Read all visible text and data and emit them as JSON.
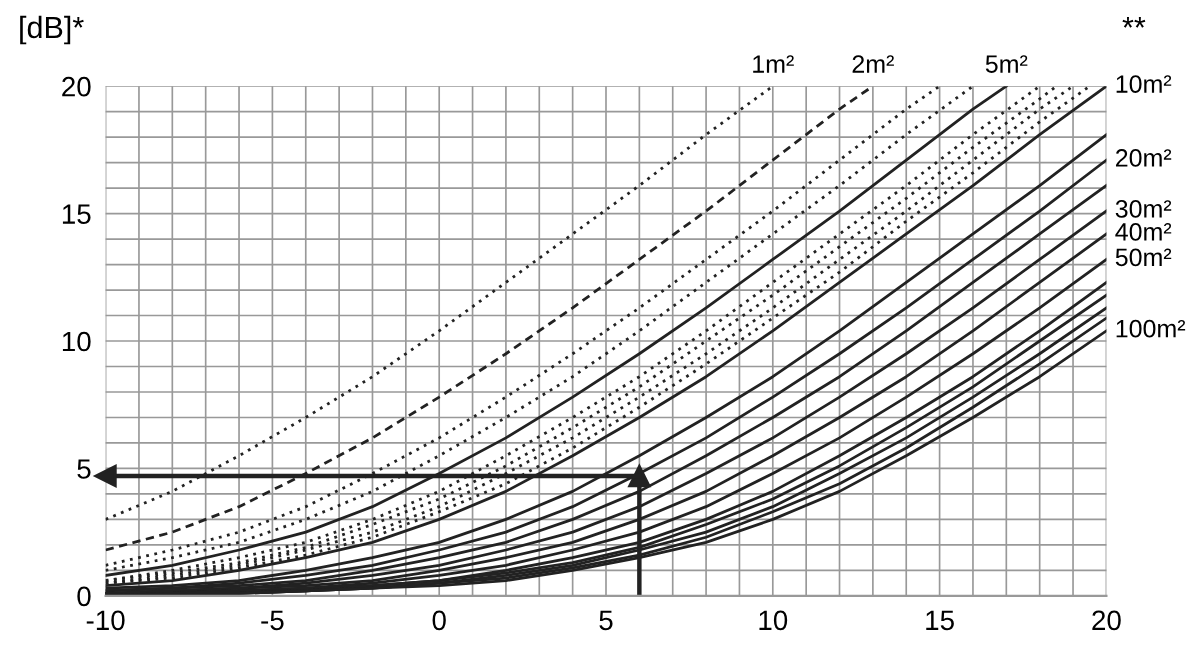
{
  "chart_data": {
    "type": "line",
    "ylabel": "[dB]*",
    "annotations": [
      "**"
    ],
    "grid": true,
    "xlim": [
      -10,
      20
    ],
    "ylim": [
      0,
      20
    ],
    "xticks": [
      -10,
      {
        "value": -9,
        "label": null
      },
      {
        "value": -8,
        "label": null
      },
      {
        "value": -7,
        "label": null
      },
      {
        "value": -6,
        "label": null
      },
      -5,
      {
        "value": -4,
        "label": null
      },
      {
        "value": -3,
        "label": null
      },
      {
        "value": -2,
        "label": null
      },
      {
        "value": -1,
        "label": null
      },
      0,
      {
        "value": 1,
        "label": null
      },
      {
        "value": 2,
        "label": null
      },
      {
        "value": 3,
        "label": null
      },
      {
        "value": 4,
        "label": null
      },
      5,
      {
        "value": 6,
        "label": null
      },
      {
        "value": 7,
        "label": null
      },
      {
        "value": 8,
        "label": null
      },
      {
        "value": 9,
        "label": null
      },
      10,
      {
        "value": 11,
        "label": null
      },
      {
        "value": 12,
        "label": null
      },
      {
        "value": 13,
        "label": null
      },
      {
        "value": 14,
        "label": null
      },
      15,
      {
        "value": 16,
        "label": null
      },
      {
        "value": 17,
        "label": null
      },
      {
        "value": 18,
        "label": null
      },
      {
        "value": 19,
        "label": null
      },
      20
    ],
    "yticks": [
      0,
      {
        "value": 1,
        "label": null
      },
      {
        "value": 2,
        "label": null
      },
      {
        "value": 3,
        "label": null
      },
      {
        "value": 4,
        "label": null
      },
      5,
      {
        "value": 6,
        "label": null
      },
      {
        "value": 7,
        "label": null
      },
      {
        "value": 8,
        "label": null
      },
      {
        "value": 9,
        "label": null
      },
      10,
      {
        "value": 11,
        "label": null
      },
      {
        "value": 12,
        "label": null
      },
      {
        "value": 13,
        "label": null
      },
      {
        "value": 14,
        "label": null
      },
      15,
      {
        "value": 16,
        "label": null
      },
      {
        "value": 17,
        "label": null
      },
      {
        "value": 18,
        "label": null
      },
      {
        "value": 19,
        "label": null
      },
      20
    ],
    "series": [
      {
        "name": "1m²",
        "color": "#222222",
        "line_style": "dotted",
        "x": [
          -10,
          -8,
          -6,
          -4,
          -2,
          0,
          2,
          4,
          6,
          8,
          10
        ],
        "values": [
          3.0,
          4.1,
          5.5,
          7.0,
          8.6,
          10.4,
          12.3,
          14.2,
          16.1,
          18.1,
          20.0
        ]
      },
      {
        "name": "2m²",
        "color": "#222222",
        "line_style": "dashed",
        "x": [
          -10,
          -8,
          -6,
          -4,
          -2,
          0,
          2,
          4,
          6,
          8,
          10,
          12,
          13
        ],
        "values": [
          1.8,
          2.5,
          3.5,
          4.8,
          6.2,
          7.8,
          9.5,
          11.3,
          13.2,
          15.1,
          17.1,
          19.1,
          20.0
        ]
      },
      {
        "color": "#222222",
        "line_style": "dotted",
        "x": [
          -10,
          -8,
          -6,
          -4,
          -2,
          0,
          2,
          4,
          6,
          8,
          10,
          12,
          14,
          15
        ],
        "values": [
          1.2,
          1.8,
          2.5,
          3.5,
          4.8,
          6.2,
          7.8,
          9.5,
          11.3,
          13.2,
          15.1,
          17.1,
          19.1,
          20.0
        ]
      },
      {
        "color": "#222222",
        "line_style": "dotted",
        "x": [
          -10,
          -8,
          -6,
          -4,
          -2,
          0,
          2,
          4,
          6,
          8,
          10,
          12,
          14,
          16
        ],
        "values": [
          1.0,
          1.5,
          2.1,
          3.0,
          4.1,
          5.5,
          7.0,
          8.6,
          10.4,
          12.3,
          14.2,
          16.1,
          18.1,
          20.0
        ]
      },
      {
        "name": "5m²",
        "color": "#222222",
        "line_style": "solid",
        "x": [
          -10,
          -8,
          -6,
          -4,
          -2,
          0,
          2,
          4,
          6,
          8,
          10,
          12,
          14,
          16,
          17
        ],
        "values": [
          0.8,
          1.2,
          1.8,
          2.5,
          3.5,
          4.8,
          6.2,
          7.8,
          9.5,
          11.3,
          13.2,
          15.1,
          17.1,
          19.1,
          20.0
        ]
      },
      {
        "color": "#222222",
        "line_style": "dotted",
        "x": [
          -10,
          -8,
          -6,
          -4,
          -2,
          0,
          2,
          4,
          6,
          8,
          10,
          12,
          14,
          16,
          18
        ],
        "values": [
          0.6,
          1.0,
          1.5,
          2.1,
          3.0,
          4.1,
          5.5,
          7.0,
          8.6,
          10.4,
          12.3,
          14.2,
          16.1,
          18.1,
          20.0
        ]
      },
      {
        "color": "#222222",
        "line_style": "dotted",
        "x": [
          -10,
          -8,
          -6,
          -4,
          -2,
          0,
          2,
          4,
          6,
          8,
          10,
          12,
          14,
          16,
          18,
          18.5
        ],
        "values": [
          0.6,
          0.9,
          1.3,
          1.9,
          2.8,
          3.8,
          5.1,
          6.6,
          8.2,
          10.0,
          11.8,
          13.7,
          15.6,
          17.6,
          19.5,
          20.0
        ]
      },
      {
        "color": "#222222",
        "line_style": "dotted",
        "x": [
          -10,
          -8,
          -6,
          -4,
          -2,
          0,
          2,
          4,
          6,
          8,
          10,
          12,
          14,
          16,
          18,
          19
        ],
        "values": [
          0.5,
          0.8,
          1.2,
          1.8,
          2.5,
          3.5,
          4.8,
          6.2,
          7.8,
          9.5,
          11.3,
          13.2,
          15.1,
          17.1,
          19.1,
          20.0
        ]
      },
      {
        "color": "#222222",
        "line_style": "dotted",
        "x": [
          -10,
          -8,
          -6,
          -4,
          -2,
          0,
          2,
          4,
          6,
          8,
          10,
          12,
          14,
          16,
          18,
          19.5
        ],
        "values": [
          0.5,
          0.7,
          1.1,
          1.6,
          2.3,
          3.3,
          4.4,
          5.8,
          7.4,
          9.1,
          10.9,
          12.7,
          14.7,
          16.6,
          18.6,
          20.0
        ]
      },
      {
        "name": "10m²",
        "color": "#222222",
        "line_style": "solid",
        "x": [
          -10,
          -8,
          -6,
          -4,
          -2,
          0,
          2,
          4,
          6,
          8,
          10,
          12,
          14,
          16,
          18,
          20
        ],
        "values": [
          0.4,
          0.6,
          1.0,
          1.5,
          2.1,
          3.0,
          4.1,
          5.5,
          7.0,
          8.6,
          10.4,
          12.3,
          14.2,
          16.1,
          18.1,
          20.0
        ]
      },
      {
        "color": "#222222",
        "line_style": "solid",
        "x": [
          -10,
          -8,
          -6,
          -4,
          -2,
          0,
          2,
          4,
          6,
          8,
          10,
          12,
          14,
          16,
          18,
          20
        ],
        "values": [
          0.3,
          0.4,
          0.6,
          1.0,
          1.5,
          2.1,
          3.0,
          4.1,
          5.5,
          7.0,
          8.6,
          10.4,
          12.3,
          14.2,
          16.1,
          18.1
        ]
      },
      {
        "name": "20m²",
        "color": "#222222",
        "line_style": "solid",
        "x": [
          -10,
          -8,
          -6,
          -4,
          -2,
          0,
          2,
          4,
          6,
          8,
          10,
          12,
          14,
          16,
          18,
          20
        ],
        "values": [
          0.2,
          0.3,
          0.5,
          0.8,
          1.2,
          1.8,
          2.5,
          3.5,
          4.8,
          6.2,
          7.8,
          9.5,
          11.3,
          13.2,
          15.1,
          17.1
        ]
      },
      {
        "color": "#222222",
        "line_style": "solid",
        "x": [
          -10,
          -8,
          -6,
          -4,
          -2,
          0,
          2,
          4,
          6,
          8,
          10,
          12,
          14,
          16,
          18,
          20
        ],
        "values": [
          0.2,
          0.3,
          0.4,
          0.6,
          1.0,
          1.5,
          2.1,
          3.0,
          4.1,
          5.5,
          7.0,
          8.6,
          10.4,
          12.3,
          14.2,
          16.1
        ]
      },
      {
        "name": "30m²",
        "color": "#222222",
        "line_style": "solid",
        "x": [
          -10,
          -8,
          -6,
          -4,
          -2,
          0,
          2,
          4,
          6,
          8,
          10,
          12,
          14,
          16,
          18,
          20
        ],
        "values": [
          0.1,
          0.2,
          0.3,
          0.5,
          0.8,
          1.2,
          1.8,
          2.5,
          3.5,
          4.8,
          6.2,
          7.8,
          9.5,
          11.3,
          13.2,
          15.1
        ]
      },
      {
        "name": "40m²",
        "color": "#222222",
        "line_style": "solid",
        "x": [
          -10,
          -8,
          -6,
          -4,
          -2,
          0,
          2,
          4,
          6,
          8,
          10,
          12,
          14,
          16,
          18,
          20
        ],
        "values": [
          0.1,
          0.2,
          0.3,
          0.4,
          0.6,
          1.0,
          1.5,
          2.1,
          3.0,
          4.1,
          5.5,
          7.0,
          8.6,
          10.4,
          12.3,
          14.2
        ]
      },
      {
        "name": "50m²",
        "color": "#222222",
        "line_style": "solid",
        "x": [
          -10,
          -8,
          -6,
          -4,
          -2,
          0,
          2,
          4,
          6,
          8,
          10,
          12,
          14,
          16,
          18,
          20
        ],
        "values": [
          0.1,
          0.1,
          0.2,
          0.3,
          0.5,
          0.8,
          1.2,
          1.8,
          2.5,
          3.5,
          4.8,
          6.2,
          7.8,
          9.5,
          11.3,
          13.2
        ]
      },
      {
        "color": "#222222",
        "line_style": "solid",
        "x": [
          -10,
          -8,
          -6,
          -4,
          -2,
          0,
          2,
          4,
          6,
          8,
          10,
          12,
          14,
          16,
          18,
          20
        ],
        "values": [
          0.1,
          0.1,
          0.2,
          0.3,
          0.4,
          0.6,
          1.0,
          1.5,
          2.1,
          3.0,
          4.1,
          5.5,
          7.0,
          8.6,
          10.4,
          12.3
        ]
      },
      {
        "color": "#222222",
        "line_style": "solid",
        "x": [
          -10,
          -8,
          -6,
          -4,
          -2,
          0,
          2,
          4,
          6,
          8,
          10,
          12,
          14,
          16,
          18,
          20
        ],
        "values": [
          0.1,
          0.1,
          0.2,
          0.2,
          0.4,
          0.6,
          0.9,
          1.3,
          1.9,
          2.8,
          3.8,
          5.1,
          6.6,
          8.2,
          10.0,
          11.8
        ]
      },
      {
        "color": "#222222",
        "line_style": "solid",
        "x": [
          -10,
          -8,
          -6,
          -4,
          -2,
          0,
          2,
          4,
          6,
          8,
          10,
          12,
          14,
          16,
          18,
          20
        ],
        "values": [
          0.1,
          0.1,
          0.1,
          0.2,
          0.3,
          0.5,
          0.8,
          1.2,
          1.8,
          2.5,
          3.5,
          4.8,
          6.2,
          7.8,
          9.5,
          11.3
        ]
      },
      {
        "color": "#222222",
        "line_style": "solid",
        "x": [
          -10,
          -8,
          -6,
          -4,
          -2,
          0,
          2,
          4,
          6,
          8,
          10,
          12,
          14,
          16,
          18,
          20
        ],
        "values": [
          0.0,
          0.1,
          0.1,
          0.2,
          0.3,
          0.5,
          0.7,
          1.1,
          1.6,
          2.3,
          3.3,
          4.4,
          5.8,
          7.4,
          9.1,
          10.9
        ]
      },
      {
        "name": "100m²",
        "color": "#222222",
        "line_style": "solid",
        "x": [
          -10,
          -8,
          -6,
          -4,
          -2,
          0,
          2,
          4,
          6,
          8,
          10,
          12,
          14,
          16,
          18,
          20
        ],
        "values": [
          0.0,
          0.1,
          0.1,
          0.2,
          0.3,
          0.4,
          0.6,
          1.0,
          1.5,
          2.1,
          3.0,
          4.1,
          5.5,
          7.0,
          8.6,
          10.4
        ]
      },
      {
        "type": "line",
        "marker": "triangle",
        "color": "#222222",
        "x": [
          6,
          6
        ],
        "values": [
          0,
          4.7
        ]
      },
      {
        "type": "line",
        "marker": "triangle",
        "color": "#222222",
        "x": [
          6,
          -10
        ],
        "values": [
          4.7,
          4.7
        ]
      }
    ]
  }
}
